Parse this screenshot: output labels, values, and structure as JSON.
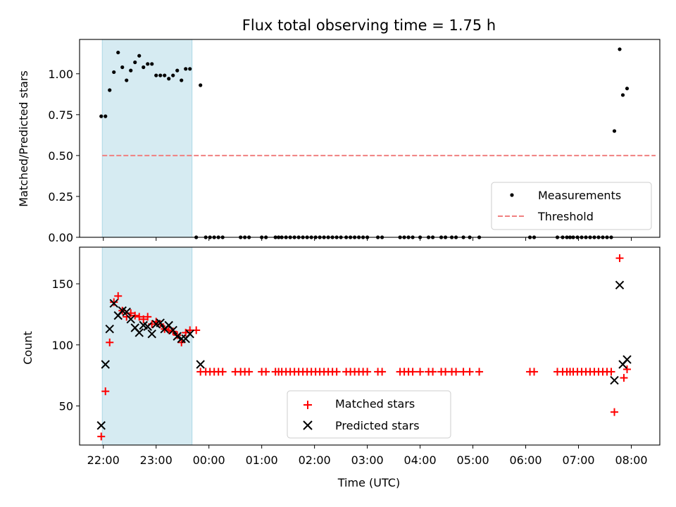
{
  "chart_data": {
    "title": "Flux total observing time = 1.75 h",
    "xlabel": "Time (UTC)",
    "x_unit": "hours since 21:00 UTC",
    "xlim": [
      21.55,
      32.54
    ],
    "xticks": [
      {
        "value": 22,
        "label": "22:00"
      },
      {
        "value": 23,
        "label": "23:00"
      },
      {
        "value": 24,
        "label": "00:00"
      },
      {
        "value": 25,
        "label": "01:00"
      },
      {
        "value": 26,
        "label": "02:00"
      },
      {
        "value": 27,
        "label": "03:00"
      },
      {
        "value": 28,
        "label": "04:00"
      },
      {
        "value": 29,
        "label": "05:00"
      },
      {
        "value": 30,
        "label": "06:00"
      },
      {
        "value": 31,
        "label": "07:00"
      },
      {
        "value": 32,
        "label": "08:00"
      }
    ],
    "shaded_span": [
      21.98,
      23.68
    ],
    "shade_color": "#add8e6",
    "top": {
      "type": "scatter",
      "ylabel": "Matched/Predicted stars",
      "ylim": [
        0,
        1.21
      ],
      "yticks": [
        "0.00",
        "0.25",
        "0.50",
        "0.75",
        "1.00"
      ],
      "threshold": {
        "y": 0.5,
        "x_range": [
          21.98,
          32.46
        ],
        "color": "#f08080"
      },
      "point_color": "#000000",
      "points": [
        [
          21.96,
          0.74
        ],
        [
          22.04,
          0.74
        ],
        [
          22.12,
          0.9
        ],
        [
          22.2,
          1.01
        ],
        [
          22.28,
          1.13
        ],
        [
          22.36,
          1.04
        ],
        [
          22.44,
          0.96
        ],
        [
          22.52,
          1.02
        ],
        [
          22.6,
          1.07
        ],
        [
          22.68,
          1.11
        ],
        [
          22.76,
          1.04
        ],
        [
          22.84,
          1.06
        ],
        [
          22.92,
          1.06
        ],
        [
          23.0,
          0.99
        ],
        [
          23.08,
          0.99
        ],
        [
          23.16,
          0.99
        ],
        [
          23.24,
          0.97
        ],
        [
          23.32,
          0.99
        ],
        [
          23.4,
          1.02
        ],
        [
          23.48,
          0.96
        ],
        [
          23.56,
          1.03
        ],
        [
          23.64,
          1.03
        ],
        [
          23.84,
          0.93
        ],
        [
          23.76,
          0
        ],
        [
          23.94,
          0
        ],
        [
          24.02,
          0
        ],
        [
          24.1,
          0
        ],
        [
          24.18,
          0
        ],
        [
          24.26,
          0
        ],
        [
          24.6,
          0
        ],
        [
          24.68,
          0
        ],
        [
          24.76,
          0
        ],
        [
          25.0,
          0
        ],
        [
          25.08,
          0
        ],
        [
          25.26,
          0
        ],
        [
          25.32,
          0
        ],
        [
          25.38,
          0
        ],
        [
          25.46,
          0
        ],
        [
          25.54,
          0
        ],
        [
          25.62,
          0
        ],
        [
          25.7,
          0
        ],
        [
          25.78,
          0
        ],
        [
          25.86,
          0
        ],
        [
          25.94,
          0
        ],
        [
          26.02,
          0
        ],
        [
          26.1,
          0
        ],
        [
          26.18,
          0
        ],
        [
          26.26,
          0
        ],
        [
          26.34,
          0
        ],
        [
          26.42,
          0
        ],
        [
          26.5,
          0
        ],
        [
          26.6,
          0
        ],
        [
          26.68,
          0
        ],
        [
          26.76,
          0
        ],
        [
          26.84,
          0
        ],
        [
          26.92,
          0
        ],
        [
          27.0,
          0
        ],
        [
          27.2,
          0
        ],
        [
          27.28,
          0
        ],
        [
          27.62,
          0
        ],
        [
          27.7,
          0
        ],
        [
          27.78,
          0
        ],
        [
          27.86,
          0
        ],
        [
          28.0,
          0
        ],
        [
          28.16,
          0
        ],
        [
          28.24,
          0
        ],
        [
          28.4,
          0
        ],
        [
          28.48,
          0
        ],
        [
          28.6,
          0
        ],
        [
          28.68,
          0
        ],
        [
          28.82,
          0
        ],
        [
          28.94,
          0
        ],
        [
          29.12,
          0
        ],
        [
          30.08,
          0
        ],
        [
          30.16,
          0
        ],
        [
          30.6,
          0
        ],
        [
          30.7,
          0
        ],
        [
          30.78,
          0
        ],
        [
          30.84,
          0
        ],
        [
          30.9,
          0
        ],
        [
          30.98,
          0
        ],
        [
          31.06,
          0
        ],
        [
          31.14,
          0
        ],
        [
          31.22,
          0
        ],
        [
          31.3,
          0
        ],
        [
          31.38,
          0
        ],
        [
          31.46,
          0
        ],
        [
          31.54,
          0
        ],
        [
          31.62,
          0
        ],
        [
          31.68,
          0.65
        ],
        [
          31.78,
          1.15
        ],
        [
          31.84,
          0.87
        ],
        [
          31.92,
          0.91
        ]
      ],
      "legend": [
        {
          "label": "Measurements",
          "marker": "dot",
          "color": "#000000"
        },
        {
          "label": "Threshold",
          "marker": "dashed-line",
          "color": "#f08080"
        }
      ],
      "legend_position": "lower right"
    },
    "bottom": {
      "type": "scatter",
      "ylabel": "Count",
      "ylim": [
        18,
        180
      ],
      "yticks": [
        "50",
        "100",
        "150"
      ],
      "series": [
        {
          "name": "Matched stars",
          "marker": "plus",
          "color": "#ff0000",
          "points": [
            [
              21.96,
              25
            ],
            [
              22.04,
              62
            ],
            [
              22.12,
              102
            ],
            [
              22.2,
              135
            ],
            [
              22.28,
              140
            ],
            [
              22.36,
              128
            ],
            [
              22.44,
              123
            ],
            [
              22.52,
              126
            ],
            [
              22.6,
              124
            ],
            [
              22.68,
              123
            ],
            [
              22.76,
              121
            ],
            [
              22.84,
              123
            ],
            [
              22.92,
              117
            ],
            [
              23.0,
              119
            ],
            [
              23.08,
              117
            ],
            [
              23.16,
              113
            ],
            [
              23.24,
              112
            ],
            [
              23.32,
              111
            ],
            [
              23.4,
              108
            ],
            [
              23.48,
              102
            ],
            [
              23.56,
              110
            ],
            [
              23.64,
              112
            ],
            [
              23.76,
              112
            ],
            [
              23.84,
              78
            ],
            [
              23.94,
              78
            ],
            [
              24.02,
              78
            ],
            [
              24.1,
              78
            ],
            [
              24.18,
              78
            ],
            [
              24.26,
              78
            ],
            [
              24.5,
              78
            ],
            [
              24.6,
              78
            ],
            [
              24.68,
              78
            ],
            [
              24.76,
              78
            ],
            [
              25.0,
              78
            ],
            [
              25.08,
              78
            ],
            [
              25.26,
              78
            ],
            [
              25.32,
              78
            ],
            [
              25.38,
              78
            ],
            [
              25.46,
              78
            ],
            [
              25.54,
              78
            ],
            [
              25.62,
              78
            ],
            [
              25.7,
              78
            ],
            [
              25.78,
              78
            ],
            [
              25.86,
              78
            ],
            [
              25.94,
              78
            ],
            [
              26.02,
              78
            ],
            [
              26.1,
              78
            ],
            [
              26.18,
              78
            ],
            [
              26.26,
              78
            ],
            [
              26.34,
              78
            ],
            [
              26.42,
              78
            ],
            [
              26.6,
              78
            ],
            [
              26.68,
              78
            ],
            [
              26.76,
              78
            ],
            [
              26.84,
              78
            ],
            [
              26.92,
              78
            ],
            [
              27.0,
              78
            ],
            [
              27.2,
              78
            ],
            [
              27.28,
              78
            ],
            [
              27.62,
              78
            ],
            [
              27.7,
              78
            ],
            [
              27.78,
              78
            ],
            [
              27.86,
              78
            ],
            [
              28.0,
              78
            ],
            [
              28.16,
              78
            ],
            [
              28.24,
              78
            ],
            [
              28.4,
              78
            ],
            [
              28.48,
              78
            ],
            [
              28.6,
              78
            ],
            [
              28.68,
              78
            ],
            [
              28.82,
              78
            ],
            [
              28.94,
              78
            ],
            [
              29.12,
              78
            ],
            [
              30.08,
              78
            ],
            [
              30.16,
              78
            ],
            [
              30.6,
              78
            ],
            [
              30.7,
              78
            ],
            [
              30.78,
              78
            ],
            [
              30.84,
              78
            ],
            [
              30.9,
              78
            ],
            [
              30.98,
              78
            ],
            [
              31.06,
              78
            ],
            [
              31.14,
              78
            ],
            [
              31.22,
              78
            ],
            [
              31.3,
              78
            ],
            [
              31.38,
              78
            ],
            [
              31.46,
              78
            ],
            [
              31.54,
              78
            ],
            [
              31.62,
              78
            ],
            [
              31.68,
              45
            ],
            [
              31.78,
              171
            ],
            [
              31.86,
              73
            ],
            [
              31.92,
              80
            ]
          ]
        },
        {
          "name": "Predicted stars",
          "marker": "x",
          "color": "#000000",
          "points": [
            [
              21.96,
              34
            ],
            [
              22.04,
              84
            ],
            [
              22.12,
              113
            ],
            [
              22.2,
              134
            ],
            [
              22.28,
              124
            ],
            [
              22.36,
              128
            ],
            [
              22.44,
              127
            ],
            [
              22.52,
              121
            ],
            [
              22.6,
              114
            ],
            [
              22.68,
              110
            ],
            [
              22.76,
              116
            ],
            [
              22.84,
              115
            ],
            [
              22.92,
              109
            ],
            [
              23.0,
              117
            ],
            [
              23.08,
              118
            ],
            [
              23.16,
              113
            ],
            [
              23.24,
              116
            ],
            [
              23.32,
              112
            ],
            [
              23.4,
              107
            ],
            [
              23.48,
              105
            ],
            [
              23.56,
              105
            ],
            [
              23.64,
              109
            ],
            [
              23.84,
              84
            ],
            [
              31.68,
              71
            ],
            [
              31.78,
              149
            ],
            [
              31.84,
              84
            ],
            [
              31.92,
              88
            ]
          ]
        }
      ],
      "legend_position": "lower center"
    }
  }
}
